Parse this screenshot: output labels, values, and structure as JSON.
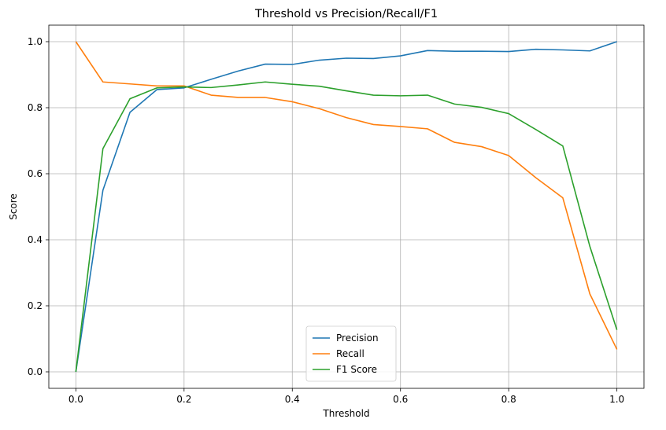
{
  "chart_data": {
    "type": "line",
    "title": "Threshold vs Precision/Recall/F1",
    "xlabel": "Threshold",
    "ylabel": "Score",
    "xlim": [
      -0.05,
      1.05
    ],
    "ylim": [
      -0.05,
      1.05
    ],
    "xticks": [
      0.0,
      0.2,
      0.4,
      0.6,
      0.8,
      1.0
    ],
    "xtick_labels": [
      "0.0",
      "0.2",
      "0.4",
      "0.6",
      "0.8",
      "1.0"
    ],
    "yticks": [
      0.0,
      0.2,
      0.4,
      0.6,
      0.8,
      1.0
    ],
    "ytick_labels": [
      "0.0",
      "0.2",
      "0.4",
      "0.6",
      "0.8",
      "1.0"
    ],
    "grid": true,
    "legend_position": "bottom-center",
    "x": [
      0.0,
      0.05,
      0.1,
      0.15,
      0.2,
      0.25,
      0.3,
      0.35,
      0.4,
      0.45,
      0.5,
      0.55,
      0.6,
      0.65,
      0.7,
      0.75,
      0.8,
      0.85,
      0.9,
      0.95,
      1.0
    ],
    "series": [
      {
        "name": "Precision",
        "color": "#1f77b4",
        "values": [
          0.0,
          0.55,
          0.786,
          0.855,
          0.86,
          0.886,
          0.911,
          0.932,
          0.931,
          0.944,
          0.95,
          0.949,
          0.957,
          0.973,
          0.971,
          0.971,
          0.97,
          0.977,
          0.975,
          0.972,
          1.0
        ]
      },
      {
        "name": "Recall",
        "color": "#ff7f0e",
        "values": [
          1.0,
          0.878,
          0.872,
          0.866,
          0.866,
          0.838,
          0.831,
          0.831,
          0.818,
          0.797,
          0.77,
          0.749,
          0.743,
          0.736,
          0.695,
          0.682,
          0.655,
          0.588,
          0.527,
          0.236,
          0.068
        ]
      },
      {
        "name": "F1 Score",
        "color": "#2ca02c",
        "values": [
          0.0,
          0.676,
          0.827,
          0.86,
          0.863,
          0.861,
          0.869,
          0.878,
          0.871,
          0.865,
          0.851,
          0.838,
          0.836,
          0.838,
          0.811,
          0.801,
          0.782,
          0.734,
          0.684,
          0.38,
          0.127
        ]
      }
    ]
  }
}
